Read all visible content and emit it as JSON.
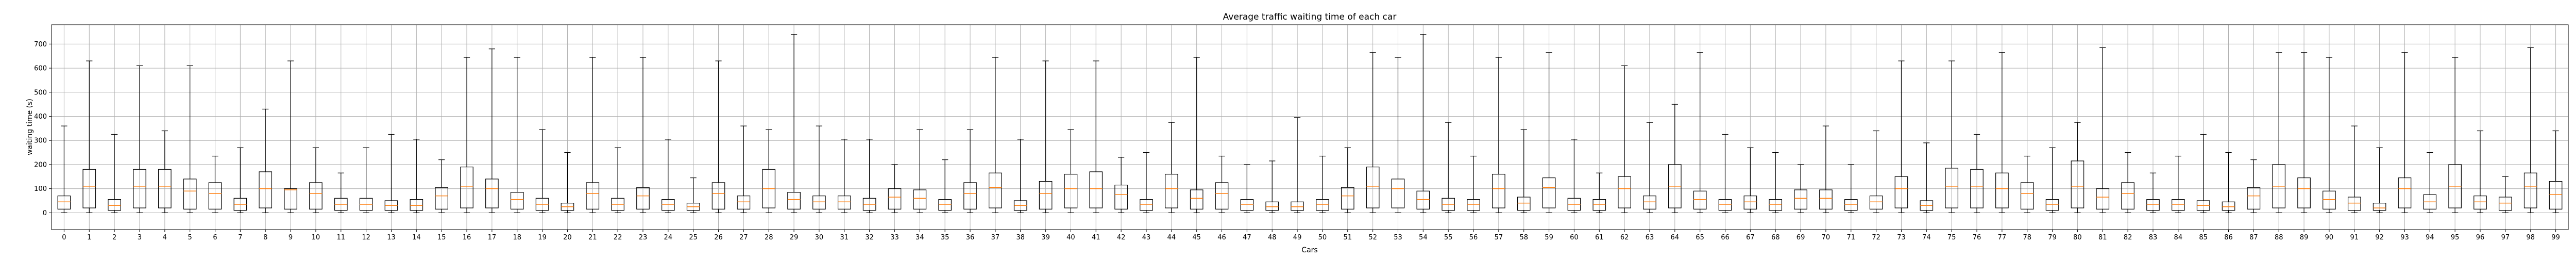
{
  "chart_data": {
    "type": "boxplot",
    "title": "Average traffic waiting time of each car",
    "xlabel": "Cars",
    "ylabel": "waiting time (s)",
    "ylim": [
      -70,
      780
    ],
    "yticks": [
      0,
      100,
      200,
      300,
      400,
      500,
      600,
      700
    ],
    "grid": true,
    "colors": {
      "box": "#000000",
      "median": "#ff7f0e",
      "grid": "#b0b0b0"
    },
    "categories": [
      "0",
      "1",
      "2",
      "3",
      "4",
      "5",
      "6",
      "7",
      "8",
      "9",
      "10",
      "11",
      "12",
      "13",
      "14",
      "15",
      "16",
      "17",
      "18",
      "19",
      "20",
      "21",
      "22",
      "23",
      "24",
      "25",
      "26",
      "27",
      "28",
      "29",
      "30",
      "31",
      "32",
      "33",
      "34",
      "35",
      "36",
      "37",
      "38",
      "39",
      "40",
      "41",
      "42",
      "43",
      "44",
      "45",
      "46",
      "47",
      "48",
      "49",
      "50",
      "51",
      "52",
      "53",
      "54",
      "55",
      "56",
      "57",
      "58",
      "59",
      "60",
      "61",
      "62",
      "63",
      "64",
      "65",
      "66",
      "67",
      "68",
      "69",
      "70",
      "71",
      "72",
      "73",
      "74",
      "75",
      "76",
      "77",
      "78",
      "79",
      "80",
      "81",
      "82",
      "83",
      "84",
      "85",
      "86",
      "87",
      "88",
      "89",
      "90",
      "91",
      "92",
      "93",
      "94",
      "95",
      "96",
      "97",
      "98",
      "99"
    ],
    "boxes": [
      {
        "min": 0,
        "q1": 15,
        "median": 45,
        "q3": 70,
        "max": 360
      },
      {
        "min": 0,
        "q1": 20,
        "median": 110,
        "q3": 180,
        "max": 630
      },
      {
        "min": 0,
        "q1": 10,
        "median": 30,
        "q3": 55,
        "max": 325
      },
      {
        "min": 0,
        "q1": 20,
        "median": 110,
        "q3": 180,
        "max": 610
      },
      {
        "min": 0,
        "q1": 20,
        "median": 110,
        "q3": 180,
        "max": 340
      },
      {
        "min": 0,
        "q1": 15,
        "median": 90,
        "q3": 140,
        "max": 610
      },
      {
        "min": 0,
        "q1": 15,
        "median": 80,
        "q3": 125,
        "max": 235
      },
      {
        "min": 0,
        "q1": 10,
        "median": 35,
        "q3": 60,
        "max": 270
      },
      {
        "min": 0,
        "q1": 20,
        "median": 100,
        "q3": 170,
        "max": 430
      },
      {
        "min": 0,
        "q1": 15,
        "median": 95,
        "q3": 100,
        "max": 630
      },
      {
        "min": 0,
        "q1": 15,
        "median": 80,
        "q3": 125,
        "max": 270
      },
      {
        "min": 0,
        "q1": 10,
        "median": 35,
        "q3": 60,
        "max": 165
      },
      {
        "min": 0,
        "q1": 10,
        "median": 35,
        "q3": 60,
        "max": 270
      },
      {
        "min": 0,
        "q1": 10,
        "median": 30,
        "q3": 50,
        "max": 325
      },
      {
        "min": 0,
        "q1": 10,
        "median": 30,
        "q3": 55,
        "max": 305
      },
      {
        "min": 0,
        "q1": 15,
        "median": 70,
        "q3": 105,
        "max": 220
      },
      {
        "min": 0,
        "q1": 20,
        "median": 110,
        "q3": 190,
        "max": 645
      },
      {
        "min": 0,
        "q1": 20,
        "median": 100,
        "q3": 140,
        "max": 680
      },
      {
        "min": 0,
        "q1": 15,
        "median": 55,
        "q3": 85,
        "max": 645
      },
      {
        "min": 0,
        "q1": 10,
        "median": 35,
        "q3": 60,
        "max": 345
      },
      {
        "min": 0,
        "q1": 10,
        "median": 25,
        "q3": 40,
        "max": 250
      },
      {
        "min": 0,
        "q1": 15,
        "median": 80,
        "q3": 125,
        "max": 645
      },
      {
        "min": 0,
        "q1": 10,
        "median": 35,
        "q3": 60,
        "max": 270
      },
      {
        "min": 0,
        "q1": 15,
        "median": 70,
        "q3": 105,
        "max": 645
      },
      {
        "min": 0,
        "q1": 10,
        "median": 35,
        "q3": 55,
        "max": 305
      },
      {
        "min": 0,
        "q1": 10,
        "median": 25,
        "q3": 40,
        "max": 145
      },
      {
        "min": 0,
        "q1": 15,
        "median": 80,
        "q3": 125,
        "max": 630
      },
      {
        "min": 0,
        "q1": 15,
        "median": 45,
        "q3": 70,
        "max": 360
      },
      {
        "min": 0,
        "q1": 20,
        "median": 100,
        "q3": 180,
        "max": 345
      },
      {
        "min": 0,
        "q1": 15,
        "median": 55,
        "q3": 85,
        "max": 740
      },
      {
        "min": 0,
        "q1": 15,
        "median": 45,
        "q3": 70,
        "max": 360
      },
      {
        "min": 0,
        "q1": 15,
        "median": 45,
        "q3": 70,
        "max": 305
      },
      {
        "min": 0,
        "q1": 10,
        "median": 35,
        "q3": 60,
        "max": 305
      },
      {
        "min": 0,
        "q1": 15,
        "median": 65,
        "q3": 100,
        "max": 200
      },
      {
        "min": 0,
        "q1": 15,
        "median": 60,
        "q3": 95,
        "max": 345
      },
      {
        "min": 0,
        "q1": 10,
        "median": 35,
        "q3": 55,
        "max": 220
      },
      {
        "min": 0,
        "q1": 15,
        "median": 80,
        "q3": 125,
        "max": 345
      },
      {
        "min": 0,
        "q1": 20,
        "median": 105,
        "q3": 165,
        "max": 645
      },
      {
        "min": 0,
        "q1": 10,
        "median": 30,
        "q3": 50,
        "max": 305
      },
      {
        "min": 0,
        "q1": 15,
        "median": 80,
        "q3": 130,
        "max": 630
      },
      {
        "min": 0,
        "q1": 20,
        "median": 100,
        "q3": 160,
        "max": 345
      },
      {
        "min": 0,
        "q1": 20,
        "median": 100,
        "q3": 170,
        "max": 630
      },
      {
        "min": 0,
        "q1": 15,
        "median": 75,
        "q3": 115,
        "max": 230
      },
      {
        "min": 0,
        "q1": 10,
        "median": 35,
        "q3": 55,
        "max": 250
      },
      {
        "min": 0,
        "q1": 20,
        "median": 100,
        "q3": 160,
        "max": 375
      },
      {
        "min": 0,
        "q1": 15,
        "median": 60,
        "q3": 95,
        "max": 645
      },
      {
        "min": 0,
        "q1": 15,
        "median": 80,
        "q3": 125,
        "max": 235
      },
      {
        "min": 0,
        "q1": 10,
        "median": 35,
        "q3": 55,
        "max": 200
      },
      {
        "min": 0,
        "q1": 10,
        "median": 25,
        "q3": 45,
        "max": 215
      },
      {
        "min": 0,
        "q1": 10,
        "median": 25,
        "q3": 45,
        "max": 395
      },
      {
        "min": 0,
        "q1": 10,
        "median": 35,
        "q3": 55,
        "max": 235
      },
      {
        "min": 0,
        "q1": 15,
        "median": 70,
        "q3": 105,
        "max": 270
      },
      {
        "min": 0,
        "q1": 20,
        "median": 110,
        "q3": 190,
        "max": 665
      },
      {
        "min": 0,
        "q1": 20,
        "median": 100,
        "q3": 140,
        "max": 645
      },
      {
        "min": 0,
        "q1": 15,
        "median": 55,
        "q3": 90,
        "max": 740
      },
      {
        "min": 0,
        "q1": 10,
        "median": 35,
        "q3": 60,
        "max": 375
      },
      {
        "min": 0,
        "q1": 10,
        "median": 35,
        "q3": 55,
        "max": 235
      },
      {
        "min": 0,
        "q1": 20,
        "median": 100,
        "q3": 160,
        "max": 645
      },
      {
        "min": 0,
        "q1": 10,
        "median": 40,
        "q3": 65,
        "max": 345
      },
      {
        "min": 0,
        "q1": 20,
        "median": 105,
        "q3": 145,
        "max": 665
      },
      {
        "min": 0,
        "q1": 10,
        "median": 35,
        "q3": 60,
        "max": 305
      },
      {
        "min": 0,
        "q1": 10,
        "median": 35,
        "q3": 55,
        "max": 165
      },
      {
        "min": 0,
        "q1": 20,
        "median": 100,
        "q3": 150,
        "max": 610
      },
      {
        "min": 0,
        "q1": 15,
        "median": 45,
        "q3": 70,
        "max": 375
      },
      {
        "min": 0,
        "q1": 20,
        "median": 110,
        "q3": 200,
        "max": 450
      },
      {
        "min": 0,
        "q1": 15,
        "median": 55,
        "q3": 90,
        "max": 665
      },
      {
        "min": 0,
        "q1": 10,
        "median": 35,
        "q3": 55,
        "max": 325
      },
      {
        "min": 0,
        "q1": 15,
        "median": 45,
        "q3": 70,
        "max": 270
      },
      {
        "min": 0,
        "q1": 10,
        "median": 35,
        "q3": 55,
        "max": 250
      },
      {
        "min": 0,
        "q1": 15,
        "median": 60,
        "q3": 95,
        "max": 200
      },
      {
        "min": 0,
        "q1": 15,
        "median": 60,
        "q3": 95,
        "max": 360
      },
      {
        "min": 0,
        "q1": 10,
        "median": 35,
        "q3": 55,
        "max": 200
      },
      {
        "min": 0,
        "q1": 15,
        "median": 45,
        "q3": 70,
        "max": 340
      },
      {
        "min": 0,
        "q1": 20,
        "median": 100,
        "q3": 150,
        "max": 630
      },
      {
        "min": 0,
        "q1": 10,
        "median": 30,
        "q3": 50,
        "max": 290
      },
      {
        "min": 0,
        "q1": 20,
        "median": 110,
        "q3": 185,
        "max": 630
      },
      {
        "min": 0,
        "q1": 20,
        "median": 110,
        "q3": 180,
        "max": 325
      },
      {
        "min": 0,
        "q1": 20,
        "median": 100,
        "q3": 165,
        "max": 665
      },
      {
        "min": 0,
        "q1": 15,
        "median": 80,
        "q3": 125,
        "max": 235
      },
      {
        "min": 0,
        "q1": 10,
        "median": 35,
        "q3": 55,
        "max": 270
      },
      {
        "min": 0,
        "q1": 20,
        "median": 110,
        "q3": 215,
        "max": 375
      },
      {
        "min": 0,
        "q1": 15,
        "median": 65,
        "q3": 100,
        "max": 685
      },
      {
        "min": 0,
        "q1": 15,
        "median": 80,
        "q3": 125,
        "max": 250
      },
      {
        "min": 0,
        "q1": 10,
        "median": 35,
        "q3": 55,
        "max": 165
      },
      {
        "min": 0,
        "q1": 10,
        "median": 35,
        "q3": 55,
        "max": 235
      },
      {
        "min": 0,
        "q1": 10,
        "median": 30,
        "q3": 50,
        "max": 325
      },
      {
        "min": 0,
        "q1": 10,
        "median": 25,
        "q3": 45,
        "max": 250
      },
      {
        "min": 0,
        "q1": 15,
        "median": 70,
        "q3": 105,
        "max": 220
      },
      {
        "min": 0,
        "q1": 20,
        "median": 110,
        "q3": 200,
        "max": 665
      },
      {
        "min": 0,
        "q1": 20,
        "median": 100,
        "q3": 145,
        "max": 665
      },
      {
        "min": 0,
        "q1": 15,
        "median": 55,
        "q3": 90,
        "max": 645
      },
      {
        "min": 0,
        "q1": 10,
        "median": 40,
        "q3": 65,
        "max": 360
      },
      {
        "min": 0,
        "q1": 10,
        "median": 20,
        "q3": 40,
        "max": 270
      },
      {
        "min": 0,
        "q1": 20,
        "median": 100,
        "q3": 145,
        "max": 665
      },
      {
        "min": 0,
        "q1": 15,
        "median": 45,
        "q3": 75,
        "max": 250
      },
      {
        "min": 0,
        "q1": 20,
        "median": 110,
        "q3": 200,
        "max": 645
      },
      {
        "min": 0,
        "q1": 15,
        "median": 45,
        "q3": 70,
        "max": 340
      },
      {
        "min": 0,
        "q1": 10,
        "median": 40,
        "q3": 65,
        "max": 150
      },
      {
        "min": 0,
        "q1": 20,
        "median": 110,
        "q3": 165,
        "max": 685
      },
      {
        "min": 0,
        "q1": 15,
        "median": 75,
        "q3": 130,
        "max": 340
      }
    ]
  }
}
